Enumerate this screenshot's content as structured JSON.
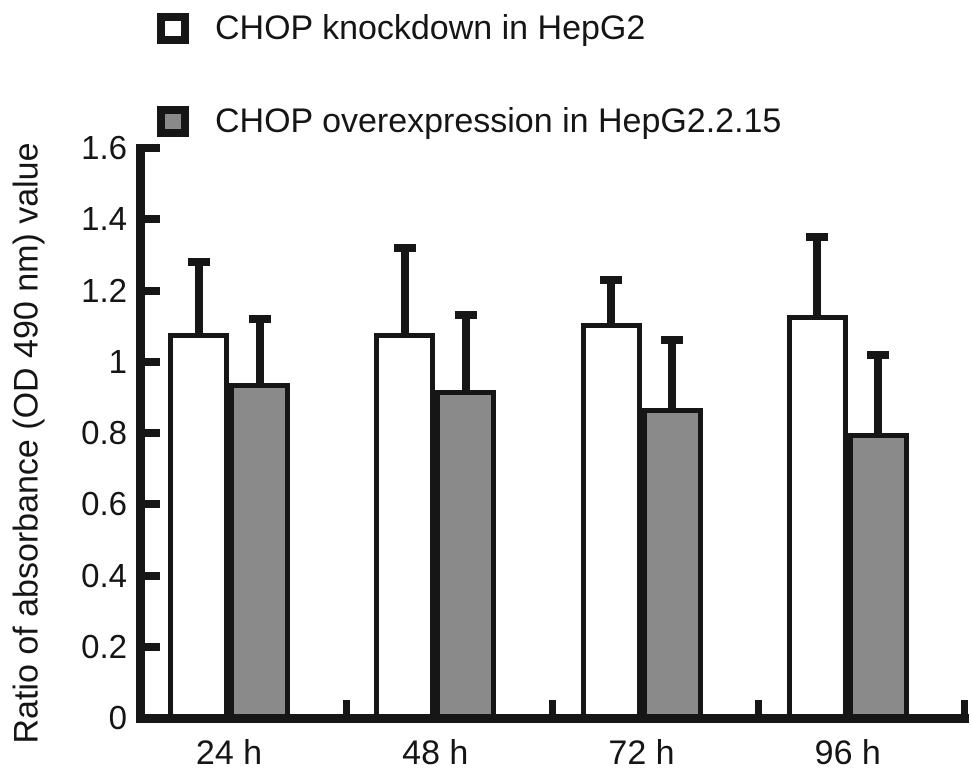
{
  "chart_data": {
    "type": "bar",
    "title": "",
    "ylabel": "Ratio of absorbance (OD 490 nm) value",
    "xlabel": "",
    "categories": [
      "24 h",
      "48 h",
      "72 h",
      "96 h"
    ],
    "series": [
      {
        "key": "knockdown",
        "name": "CHOP knockdown in HepG2",
        "fill": "#ffffff",
        "values": [
          1.08,
          1.08,
          1.11,
          1.13
        ],
        "errors_up": [
          0.2,
          0.24,
          0.12,
          0.22
        ]
      },
      {
        "key": "overexpression",
        "name": "CHOP overexpression in HepG2.2.15",
        "fill": "#8a8a8a",
        "values": [
          0.94,
          0.92,
          0.87,
          0.8
        ],
        "errors_up": [
          0.18,
          0.21,
          0.19,
          0.22
        ]
      }
    ],
    "ylim": [
      0,
      1.6
    ],
    "ytick_labels": [
      "0",
      "0.2",
      "0.4",
      "0.6",
      "0.8",
      "1",
      "1.2",
      "1.4",
      "1.6"
    ],
    "grid": false,
    "legend_position": "top-left",
    "colors": {
      "ink": "#161616",
      "open_bar_fill": "#ffffff",
      "gray_bar_fill": "#8a8a8a"
    }
  }
}
